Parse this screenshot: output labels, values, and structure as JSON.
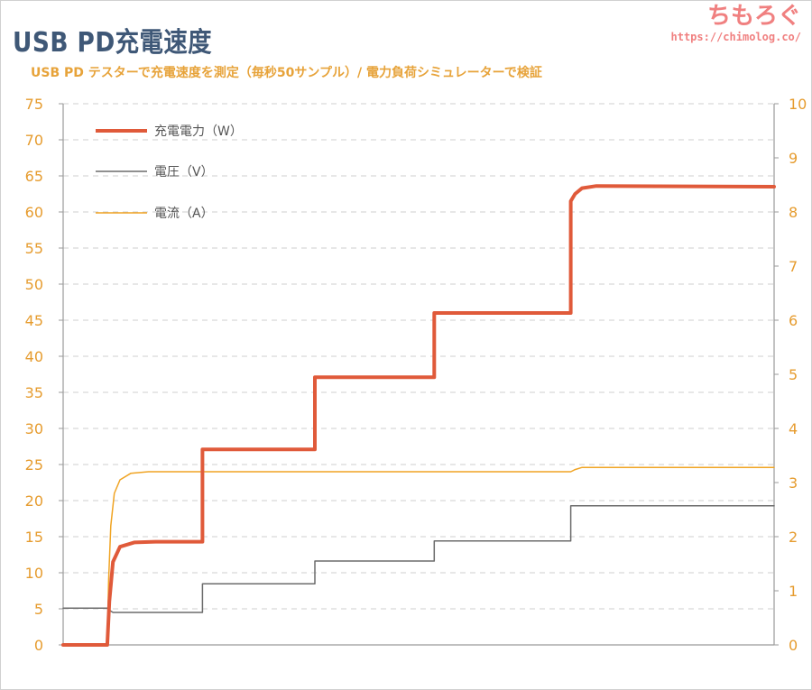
{
  "header": {
    "title": "USB PD充電速度",
    "subtitle": "USB PD テスターで充電速度を測定（毎秒50サンプル）/ 電力負荷シミュレーターで検証"
  },
  "logo": {
    "text": "ちもろぐ",
    "url": "https://chimolog.co/"
  },
  "colors": {
    "power": "#e05a3a",
    "voltage": "#6b6b6b",
    "current": "#f0a424",
    "axis_text": "#e69c2f",
    "title": "#3f5877"
  },
  "chart_data": {
    "type": "line",
    "title": "USB PD充電速度",
    "y_left": {
      "min": 0,
      "max": 75,
      "ticks": [
        0,
        5,
        10,
        15,
        20,
        25,
        30,
        35,
        40,
        45,
        50,
        55,
        60,
        65,
        70,
        75
      ]
    },
    "y_right": {
      "min": 0,
      "max": 10,
      "ticks": [
        0,
        1,
        2,
        3,
        4,
        5,
        6,
        7,
        8,
        9,
        10
      ]
    },
    "x_range": [
      0,
      100
    ],
    "grid": "horizontal dashed",
    "legend_placement": "top-left",
    "series": [
      {
        "name": "充電電力（W）",
        "axis": "left",
        "x": [
          0,
          6.2,
          6.5,
          7,
          8,
          10,
          13,
          19.6,
          19.6,
          35.4,
          35.4,
          52.2,
          52.2,
          71.4,
          71.4,
          72,
          73,
          75,
          100
        ],
        "y": [
          0,
          0,
          6,
          11.5,
          13.6,
          14.2,
          14.3,
          14.3,
          27.1,
          27.1,
          37.1,
          37.1,
          46.0,
          46.0,
          61.5,
          62.5,
          63.3,
          63.6,
          63.5
        ]
      },
      {
        "name": "電圧（V）",
        "axis": "right",
        "x": [
          0,
          6.2,
          6.4,
          7,
          19.6,
          19.6,
          35.4,
          35.4,
          52.2,
          52.2,
          71.4,
          71.4,
          100
        ],
        "y": [
          0.68,
          0.68,
          0.65,
          0.6,
          0.6,
          1.13,
          1.13,
          1.55,
          1.55,
          1.92,
          1.92,
          2.57,
          2.57
        ]
      },
      {
        "name": "電流（A）",
        "axis": "right",
        "x": [
          0,
          6.2,
          6.4,
          6.7,
          7.2,
          8,
          9.5,
          12,
          71.4,
          72,
          73,
          100
        ],
        "y": [
          0,
          0,
          1.2,
          2.2,
          2.8,
          3.05,
          3.17,
          3.2,
          3.2,
          3.24,
          3.28,
          3.28
        ]
      }
    ]
  }
}
